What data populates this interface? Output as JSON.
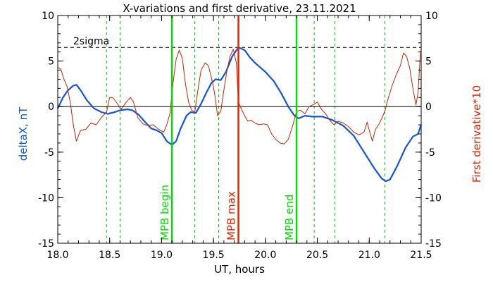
{
  "chart_data": {
    "type": "line",
    "title": "X-variations and first derivative, 23.11.2021",
    "xlabel": "UT, hours",
    "ylabel_left": "deltaX, nT",
    "ylabel_right": "First derivative*10",
    "xlim": [
      18.0,
      21.5
    ],
    "ylim": [
      -15,
      10
    ],
    "xticks": [
      18.0,
      18.5,
      19.0,
      19.5,
      20.0,
      20.5,
      21.0,
      21.5
    ],
    "xtick_labels": [
      "18.0",
      "18.5",
      "19.0",
      "19.5",
      "20.0",
      "20.5",
      "21.0",
      "21.5"
    ],
    "yticks": [
      -15,
      -10,
      -5,
      0,
      5,
      10
    ],
    "ytick_labels": [
      "-15",
      "-10",
      "-5",
      "0",
      "5",
      "10"
    ],
    "twosigma": {
      "label": "2sigma",
      "value": 6.5
    },
    "zero_line": 0,
    "vlines_dashed": [
      18.47,
      18.6,
      19.32,
      19.55,
      20.47,
      20.67,
      21.15
    ],
    "markers": [
      {
        "label": "MPB begin",
        "x": 19.1,
        "color": "#00dd00"
      },
      {
        "label": "MPB max",
        "x": 19.74,
        "color": "#ee2200"
      },
      {
        "label": "MPB end",
        "x": 20.3,
        "color": "#00dd00"
      }
    ],
    "colors": {
      "deltaX": "#1155dd",
      "derivative": "#cc2200",
      "marker_green": "#00dd00",
      "dashed_green": "#00cc00"
    },
    "series": [
      {
        "name": "deltaX, nT",
        "axis": "left",
        "points": [
          [
            18.0,
            -0.2
          ],
          [
            18.05,
            1.0
          ],
          [
            18.1,
            1.8
          ],
          [
            18.15,
            2.3
          ],
          [
            18.18,
            2.4
          ],
          [
            18.22,
            1.8
          ],
          [
            18.28,
            0.7
          ],
          [
            18.35,
            -0.2
          ],
          [
            18.42,
            -0.6
          ],
          [
            18.48,
            -0.8
          ],
          [
            18.55,
            -0.6
          ],
          [
            18.6,
            -0.4
          ],
          [
            18.67,
            -0.3
          ],
          [
            18.72,
            -0.4
          ],
          [
            18.78,
            -0.9
          ],
          [
            18.85,
            -1.8
          ],
          [
            18.9,
            -2.4
          ],
          [
            18.95,
            -2.6
          ],
          [
            19.0,
            -2.9
          ],
          [
            19.05,
            -3.8
          ],
          [
            19.1,
            -4.2
          ],
          [
            19.14,
            -3.8
          ],
          [
            19.18,
            -2.5
          ],
          [
            19.24,
            -1.0
          ],
          [
            19.28,
            -0.6
          ],
          [
            19.33,
            -0.7
          ],
          [
            19.38,
            0.3
          ],
          [
            19.43,
            1.5
          ],
          [
            19.48,
            2.6
          ],
          [
            19.52,
            3.0
          ],
          [
            19.57,
            2.9
          ],
          [
            19.62,
            3.8
          ],
          [
            19.68,
            5.5
          ],
          [
            19.74,
            6.5
          ],
          [
            19.8,
            6.2
          ],
          [
            19.85,
            5.4
          ],
          [
            19.9,
            4.8
          ],
          [
            20.0,
            3.8
          ],
          [
            20.08,
            2.8
          ],
          [
            20.15,
            1.5
          ],
          [
            20.22,
            0.0
          ],
          [
            20.28,
            -1.0
          ],
          [
            20.32,
            -1.3
          ],
          [
            20.38,
            -1.0
          ],
          [
            20.45,
            -1.1
          ],
          [
            20.55,
            -1.1
          ],
          [
            20.65,
            -1.5
          ],
          [
            20.75,
            -2.1
          ],
          [
            20.85,
            -3.2
          ],
          [
            20.95,
            -5.0
          ],
          [
            21.05,
            -6.8
          ],
          [
            21.12,
            -7.9
          ],
          [
            21.16,
            -8.2
          ],
          [
            21.2,
            -8.0
          ],
          [
            21.27,
            -6.5
          ],
          [
            21.35,
            -4.5
          ],
          [
            21.42,
            -3.3
          ],
          [
            21.47,
            -3.0
          ],
          [
            21.5,
            -2.0
          ]
        ]
      },
      {
        "name": "First derivative*10",
        "axis": "right",
        "points": [
          [
            18.0,
            4.3
          ],
          [
            18.03,
            4.1
          ],
          [
            18.06,
            3.0
          ],
          [
            18.09,
            2.2
          ],
          [
            18.12,
            0.5
          ],
          [
            18.15,
            -2.0
          ],
          [
            18.18,
            -3.8
          ],
          [
            18.22,
            -2.6
          ],
          [
            18.27,
            -2.5
          ],
          [
            18.32,
            -1.8
          ],
          [
            18.37,
            -2.0
          ],
          [
            18.42,
            -1.2
          ],
          [
            18.47,
            -0.6
          ],
          [
            18.5,
            1.0
          ],
          [
            18.53,
            1.0
          ],
          [
            18.57,
            0.4
          ],
          [
            18.61,
            -0.3
          ],
          [
            18.66,
            0.5
          ],
          [
            18.7,
            1.0
          ],
          [
            18.73,
            0.5
          ],
          [
            18.77,
            -1.2
          ],
          [
            18.82,
            -1.9
          ],
          [
            18.87,
            -2.1
          ],
          [
            18.92,
            -2.0
          ],
          [
            18.97,
            -2.5
          ],
          [
            19.02,
            -2.8
          ],
          [
            19.05,
            -2.0
          ],
          [
            19.08,
            -0.8
          ],
          [
            19.11,
            2.5
          ],
          [
            19.14,
            5.2
          ],
          [
            19.17,
            6.2
          ],
          [
            19.2,
            5.3
          ],
          [
            19.23,
            2.5
          ],
          [
            19.26,
            0.5
          ],
          [
            19.29,
            -0.4
          ],
          [
            19.32,
            -0.6
          ],
          [
            19.35,
            1.8
          ],
          [
            19.38,
            4.0
          ],
          [
            19.42,
            4.8
          ],
          [
            19.45,
            4.5
          ],
          [
            19.48,
            3.2
          ],
          [
            19.51,
            1.5
          ],
          [
            19.54,
            -1.0
          ],
          [
            19.57,
            -0.5
          ],
          [
            19.6,
            1.8
          ],
          [
            19.63,
            4.0
          ],
          [
            19.66,
            5.5
          ],
          [
            19.69,
            6.3
          ],
          [
            19.72,
            4.8
          ],
          [
            19.74,
            0.5
          ],
          [
            19.77,
            -0.3
          ],
          [
            19.8,
            -1.0
          ],
          [
            19.83,
            -1.6
          ],
          [
            19.86,
            -1.5
          ],
          [
            19.9,
            -1.8
          ],
          [
            19.94,
            -2.0
          ],
          [
            19.98,
            -1.9
          ],
          [
            20.02,
            -2.0
          ],
          [
            20.06,
            -3.0
          ],
          [
            20.1,
            -3.6
          ],
          [
            20.14,
            -4.0
          ],
          [
            20.18,
            -4.1
          ],
          [
            20.22,
            -3.6
          ],
          [
            20.26,
            -2.2
          ],
          [
            20.3,
            -0.5
          ],
          [
            20.34,
            -0.4
          ],
          [
            20.38,
            -0.8
          ],
          [
            20.42,
            0.0
          ],
          [
            20.46,
            0.2
          ],
          [
            20.5,
            0.5
          ],
          [
            20.54,
            -0.3
          ],
          [
            20.58,
            -0.8
          ],
          [
            20.62,
            -1.5
          ],
          [
            20.66,
            -2.0
          ],
          [
            20.7,
            -1.6
          ],
          [
            20.75,
            -1.8
          ],
          [
            20.8,
            -2.2
          ],
          [
            20.85,
            -2.8
          ],
          [
            20.9,
            -3.1
          ],
          [
            20.95,
            -2.8
          ],
          [
            20.98,
            -1.7
          ],
          [
            21.0,
            -2.6
          ],
          [
            21.03,
            -3.8
          ],
          [
            21.06,
            -2.5
          ],
          [
            21.09,
            -2.0
          ],
          [
            21.12,
            -1.3
          ],
          [
            21.15,
            -0.5
          ],
          [
            21.18,
            0.8
          ],
          [
            21.22,
            2.3
          ],
          [
            21.26,
            3.5
          ],
          [
            21.3,
            4.5
          ],
          [
            21.33,
            5.9
          ],
          [
            21.36,
            5.5
          ],
          [
            21.39,
            4.2
          ],
          [
            21.42,
            2.0
          ],
          [
            21.45,
            0.2
          ],
          [
            21.47,
            1.5
          ],
          [
            21.49,
            5.4
          ],
          [
            21.5,
            6.2
          ]
        ]
      }
    ]
  }
}
